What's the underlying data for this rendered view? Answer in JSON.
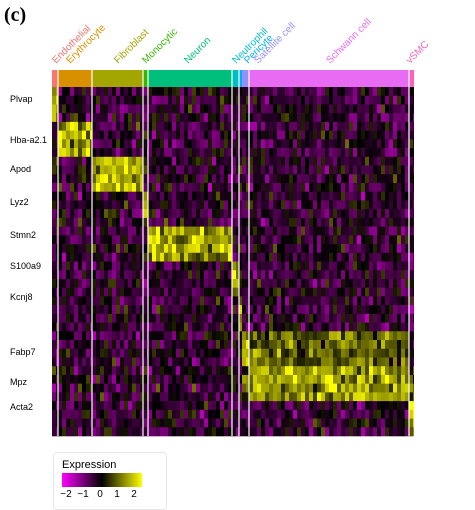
{
  "panel_label": "(c)",
  "chart_data": {
    "type": "heatmap",
    "clusters": [
      {
        "name": "Endothelial",
        "color": "#F8766D"
      },
      {
        "name": "Erythrocyte",
        "color": "#D89000"
      },
      {
        "name": "Fibroblast",
        "color": "#A3A500"
      },
      {
        "name": "Monocytic",
        "color": "#39B600"
      },
      {
        "name": "Neuron",
        "color": "#00BF7D"
      },
      {
        "name": "Neutrophil",
        "color": "#00BFC4"
      },
      {
        "name": "Pericyte",
        "color": "#00B0F6"
      },
      {
        "name": "Satellite cell",
        "color": "#9590FF"
      },
      {
        "name": "Schwann cell",
        "color": "#E76BF3"
      },
      {
        "name": "vSMC",
        "color": "#FF62BC"
      }
    ],
    "gene_labels": [
      "Plvap",
      "Hba-a2.1",
      "Apod",
      "Lyz2",
      "Stmn2",
      "S100a9",
      "Kcnj8",
      "Fabp7",
      "Mpz",
      "Acta2"
    ],
    "legend": {
      "title": "Expression",
      "ticks": [
        "−2",
        "−1",
        "0",
        "1",
        "2"
      ],
      "low_color": "#FF00FF",
      "mid_color": "#000000",
      "high_color": "#FFFF00"
    }
  }
}
